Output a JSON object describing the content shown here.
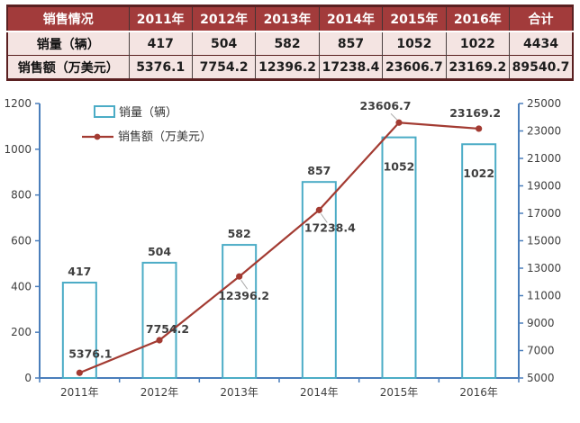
{
  "table": {
    "header": [
      "销售情况",
      "2011年",
      "2012年",
      "2013年",
      "2014年",
      "2015年",
      "2016年",
      "合计"
    ],
    "rows": [
      {
        "label": "销量（辆）",
        "values": [
          "417",
          "504",
          "582",
          "857",
          "1052",
          "1022",
          "4434"
        ]
      },
      {
        "label": "销售额（万美元）",
        "values": [
          "5376.1",
          "7754.2",
          "12396.2",
          "17238.4",
          "23606.7",
          "23169.2",
          "89540.7"
        ]
      }
    ]
  },
  "chart_data": {
    "type": "bar",
    "subtype": "combo bar+line, dual axis",
    "categories": [
      "2011年",
      "2012年",
      "2013年",
      "2014年",
      "2015年",
      "2016年"
    ],
    "series": [
      {
        "name": "销量（辆）",
        "type": "bar",
        "axis": "left",
        "values": [
          417,
          504,
          582,
          857,
          1052,
          1022
        ]
      },
      {
        "name": "销售额（万美元）",
        "type": "line",
        "axis": "right",
        "values": [
          5376.1,
          7754.2,
          12396.2,
          17238.4,
          23606.7,
          23169.2
        ]
      }
    ],
    "left_axis": {
      "min": 0,
      "max": 1200,
      "step": 200,
      "ticks": [
        0,
        200,
        400,
        600,
        800,
        1000,
        1200
      ]
    },
    "right_axis": {
      "min": 5000,
      "max": 25000,
      "step": 2000,
      "ticks": [
        5000,
        7000,
        9000,
        11000,
        13000,
        15000,
        17000,
        19000,
        21000,
        23000,
        25000
      ]
    },
    "grid": false,
    "data_labels": true,
    "legend_position": "top-left-inside"
  },
  "colors": {
    "table_header_bg": "#A23B3B",
    "table_body_bg": "#F4E4E2",
    "table_border_dark": "#5A2021",
    "axis": "#4A7EBB",
    "bar_stroke": "#4BACC6",
    "bar_fill": "#FEFFFF",
    "line": "#A33B32",
    "label_text": "#3F3F3F",
    "leader": "#AAAAAA"
  }
}
